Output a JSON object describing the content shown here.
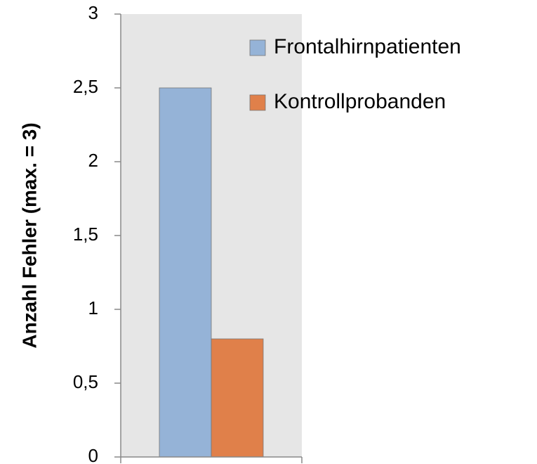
{
  "chart_data": {
    "type": "bar",
    "categories": [
      null
    ],
    "series": [
      {
        "name": "Frontalhirnpatienten",
        "color": "#95b3d7",
        "values": [
          2.5
        ]
      },
      {
        "name": "Kontrollprobanden",
        "color": "#e0804a",
        "values": [
          0.8
        ]
      }
    ],
    "ylabel": "Anzahl Fehler (max. = 3)",
    "ylim": [
      0,
      3
    ],
    "yticks": [
      0,
      {
        "value": 0.5,
        "label": "0,5"
      },
      1,
      {
        "value": 1.5,
        "label": "1,5"
      },
      2,
      {
        "value": 2.5,
        "label": "2,5"
      },
      3
    ],
    "grid": false,
    "legend": "right"
  }
}
